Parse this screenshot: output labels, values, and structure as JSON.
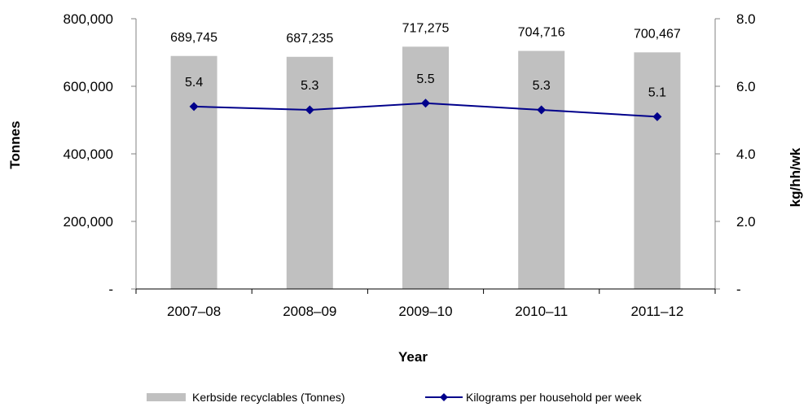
{
  "chart_data": {
    "type": "bar+line",
    "categories": [
      "2007–08",
      "2008–09",
      "2009–10",
      "2010–11",
      "2011–12"
    ],
    "series": [
      {
        "name": "Kerbside recyclables (Tonnes)",
        "type": "bar",
        "axis": "left",
        "color": "#c0c0c0",
        "values": [
          689745,
          687235,
          717275,
          704716,
          700467
        ],
        "labels": [
          "689,745",
          "687,235",
          "717,275",
          "704,716",
          "700,467"
        ]
      },
      {
        "name": "Kilograms per household per week",
        "type": "line",
        "axis": "right",
        "color": "#00008b",
        "marker": "diamond",
        "values": [
          5.4,
          5.3,
          5.5,
          5.3,
          5.1
        ],
        "labels": [
          "5.4",
          "5.3",
          "5.5",
          "5.3",
          "5.1"
        ]
      }
    ],
    "xlabel": "Year",
    "ylabel_left": "Tonnes",
    "ylabel_right": "kg/hh/wk",
    "ylim_left": [
      0,
      800000
    ],
    "ylim_right": [
      0,
      8
    ],
    "yticks_left": [
      0,
      200000,
      400000,
      600000,
      800000
    ],
    "ytick_labels_left": [
      "-",
      "200,000",
      "400,000",
      "600,000",
      "800,000"
    ],
    "yticks_right": [
      0,
      2,
      4,
      6,
      8
    ],
    "ytick_labels_right": [
      "-",
      "2.0",
      "4.0",
      "6.0",
      "8.0"
    ],
    "grid": false,
    "legend_position": "bottom"
  }
}
